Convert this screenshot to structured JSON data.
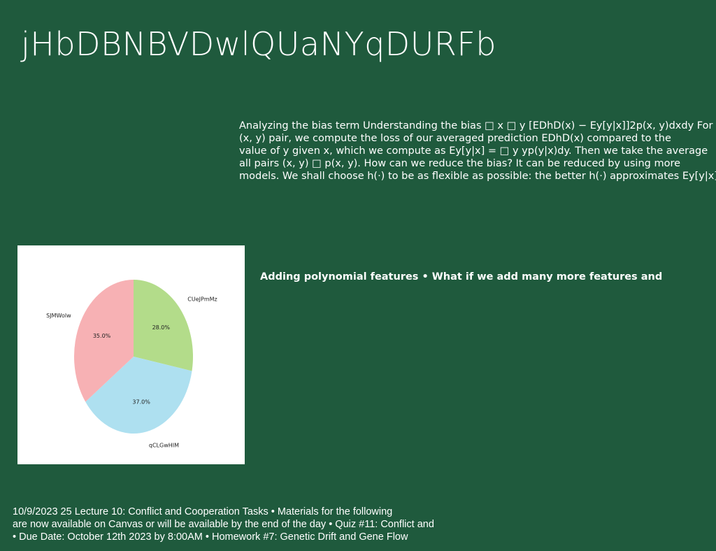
{
  "title": "jHbDBNBVDwlQUaNYqDURFb",
  "body_lines": [
    "Analyzing the bias term Understanding the bias □ x □ y [EDhD(x) − Ey[y|x]]2p(x, y)dxdy For",
    "(x, y) pair, we compute the loss of our averaged prediction EDhD(x) compared to the",
    "value of y given x, which we compute as Ey[y|x] = □ y yp(y|x)dy. Then we take the average",
    "all pairs (x, y) □ p(x, y). How can we reduce the bias? It can be reduced by using more",
    "models. We shall choose h(·) to be as flexible as possible: the better h(·) approximates Ey[y|x],"
  ],
  "subheading": "Adding polynomial features • What if we add many more features and",
  "footer_lines": [
    "10/9/2023 25 Lecture 10: Conflict and Cooperation Tasks • Materials for the following",
    "are now available on Canvas or will be available by the end of the day • Quiz #11: Conflict and",
    "• Due Date: October 12th 2023 by 8:00AM • Homework #7: Genetic Drift and Gene Flow"
  ],
  "chart_data": {
    "type": "pie",
    "start_angle_deg": 90,
    "direction": "clockwise",
    "slices": [
      {
        "label": "CUeJPmMz",
        "value": 28.0,
        "pct_label": "28.0%",
        "color": "#b3dc8a"
      },
      {
        "label": "qCLGwHIM",
        "value": 37.0,
        "pct_label": "37.0%",
        "color": "#aee0f0"
      },
      {
        "label": "SJMWolw",
        "value": 35.0,
        "pct_label": "35.0%",
        "color": "#f7b1b4"
      }
    ]
  }
}
